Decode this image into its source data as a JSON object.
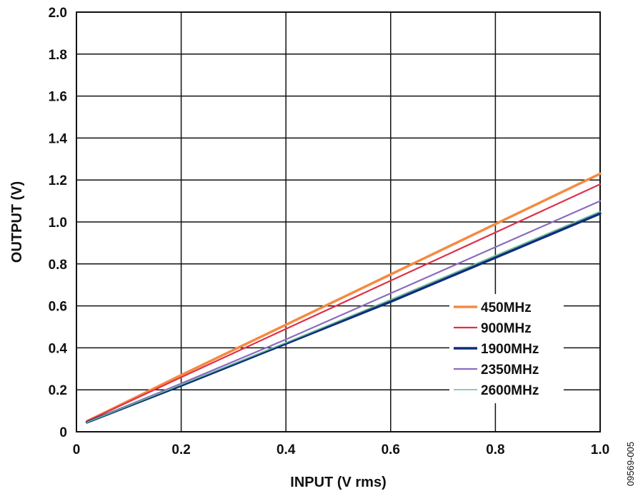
{
  "chart_data": {
    "type": "line",
    "xlabel": "INPUT (V rms)",
    "ylabel": "OUTPUT (V)",
    "xlim": [
      0,
      1.0
    ],
    "ylim": [
      0,
      2.0
    ],
    "x_ticks": [
      "0",
      "0.2",
      "0.4",
      "0.6",
      "0.8",
      "1.0"
    ],
    "y_ticks": [
      "0",
      "0.2",
      "0.4",
      "0.6",
      "0.8",
      "1.0",
      "1.2",
      "1.4",
      "1.6",
      "1.8",
      "2.0"
    ],
    "grid": true,
    "legend_position": "right",
    "series": [
      {
        "name": "450MHz",
        "color": "#f58a3f",
        "x": [
          0.02,
          0.2,
          0.4,
          0.6,
          0.8,
          1.0
        ],
        "y": [
          0.05,
          0.27,
          0.51,
          0.75,
          0.99,
          1.23
        ]
      },
      {
        "name": "900MHz",
        "color": "#e0304a",
        "x": [
          0.02,
          0.2,
          0.4,
          0.6,
          0.8,
          1.0
        ],
        "y": [
          0.05,
          0.26,
          0.49,
          0.72,
          0.95,
          1.18
        ]
      },
      {
        "name": "1900MHz",
        "color": "#0c2f7a",
        "x": [
          0.02,
          0.2,
          0.4,
          0.6,
          0.8,
          1.0
        ],
        "y": [
          0.045,
          0.22,
          0.42,
          0.62,
          0.83,
          1.04
        ]
      },
      {
        "name": "2350MHz",
        "color": "#8a6bbf",
        "x": [
          0.02,
          0.2,
          0.4,
          0.6,
          0.8,
          1.0
        ],
        "y": [
          0.045,
          0.23,
          0.44,
          0.66,
          0.88,
          1.1
        ]
      },
      {
        "name": "2600MHz",
        "color": "#6db89a",
        "x": [
          0.02,
          0.2,
          0.4,
          0.6,
          0.8,
          1.0
        ],
        "y": [
          0.045,
          0.225,
          0.425,
          0.63,
          0.84,
          1.05
        ]
      }
    ]
  },
  "figure_id": "09569-005"
}
